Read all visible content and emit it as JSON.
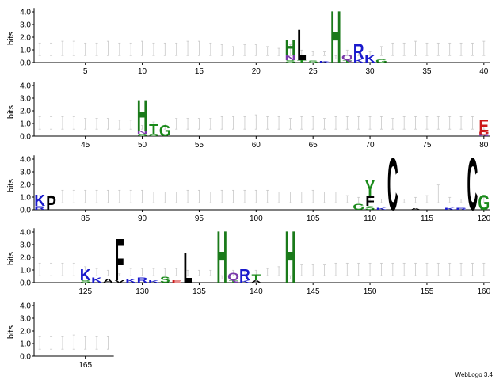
{
  "chart_data": {
    "type": "sequence-logo",
    "ylabel": "bits",
    "ylim": [
      0,
      4.3
    ],
    "yticks": [
      "0.0",
      "1.0",
      "2.0",
      "3.0",
      "4.0"
    ],
    "positions_per_row": 40,
    "total_positions": 167,
    "xtick_labels": [
      "5",
      "10",
      "15",
      "20",
      "25",
      "30",
      "35",
      "40",
      "45",
      "50",
      "55",
      "60",
      "65",
      "70",
      "75",
      "80",
      "85",
      "90",
      "95",
      "100",
      "105",
      "110",
      "115",
      "120",
      "125",
      "130",
      "135",
      "140",
      "145",
      "150",
      "155",
      "160",
      "165"
    ],
    "xtick_values": [
      5,
      10,
      15,
      20,
      25,
      30,
      35,
      40,
      45,
      50,
      55,
      60,
      65,
      70,
      75,
      80,
      85,
      90,
      95,
      100,
      105,
      110,
      115,
      120,
      125,
      130,
      135,
      140,
      145,
      150,
      155,
      160,
      165
    ],
    "residue_colors": {
      "H": "#1a7a1a",
      "C": "#000000",
      "G": "#1a8a1a",
      "Y": "#1a8a1a",
      "T": "#1a8a1a",
      "S": "#1a8a1a",
      "N": "#7a3aaa",
      "Q": "#7a3aaa",
      "K": "#1a1acc",
      "R": "#1a1acc",
      "E": "#cc1a1a",
      "D": "#cc1a1a",
      "L": "#000000",
      "F": "#000000",
      "P": "#000000",
      "A": "#000000",
      "V": "#000000"
    },
    "stacks": [
      {
        "pos": 23,
        "letters": [
          [
            "H",
            1.3
          ],
          [
            "N",
            0.35
          ],
          [
            "S",
            0.2
          ]
        ]
      },
      {
        "pos": 24,
        "letters": [
          [
            "L",
            2.5
          ],
          [
            "T",
            0.2
          ]
        ]
      },
      {
        "pos": 25,
        "letters": [
          [
            "S",
            0.15
          ]
        ]
      },
      {
        "pos": 26,
        "letters": [
          [
            "K",
            0.12
          ]
        ]
      },
      {
        "pos": 27,
        "letters": [
          [
            "H",
            4.2
          ]
        ]
      },
      {
        "pos": 28,
        "letters": [
          [
            "Q",
            0.45
          ],
          [
            "T",
            0.2
          ]
        ]
      },
      {
        "pos": 29,
        "letters": [
          [
            "R",
            1.2
          ],
          [
            "K",
            0.3
          ]
        ]
      },
      {
        "pos": 30,
        "letters": [
          [
            "K",
            0.6
          ]
        ]
      },
      {
        "pos": 31,
        "letters": [
          [
            "G",
            0.25
          ]
        ]
      },
      {
        "pos": 50,
        "letters": [
          [
            "H",
            2.5
          ],
          [
            "N",
            0.25
          ],
          [
            "S",
            0.2
          ]
        ]
      },
      {
        "pos": 51,
        "letters": [
          [
            "T",
            0.8
          ],
          [
            "S",
            0.2
          ]
        ]
      },
      {
        "pos": 52,
        "letters": [
          [
            "G",
            0.9
          ]
        ]
      },
      {
        "pos": 80,
        "letters": [
          [
            "E",
            1.0
          ],
          [
            "D",
            0.2
          ],
          [
            "N",
            0.15
          ]
        ]
      },
      {
        "pos": 81,
        "letters": [
          [
            "K",
            0.9
          ],
          [
            "R",
            0.3
          ]
        ]
      },
      {
        "pos": 82,
        "letters": [
          [
            "P",
            1.1
          ]
        ]
      },
      {
        "pos": 109,
        "letters": [
          [
            "G",
            0.5
          ]
        ]
      },
      {
        "pos": 110,
        "letters": [
          [
            "Y",
            1.3
          ],
          [
            "F",
            0.8
          ],
          [
            "S",
            0.3
          ]
        ]
      },
      {
        "pos": 111,
        "letters": [
          [
            "K",
            0.15
          ]
        ]
      },
      {
        "pos": 112,
        "letters": [
          [
            "C",
            4.2
          ]
        ]
      },
      {
        "pos": 114,
        "letters": [
          [
            "A",
            0.1
          ]
        ]
      },
      {
        "pos": 117,
        "letters": [
          [
            "K",
            0.15
          ]
        ]
      },
      {
        "pos": 118,
        "letters": [
          [
            "R",
            0.15
          ]
        ]
      },
      {
        "pos": 119,
        "letters": [
          [
            "C",
            4.2
          ]
        ]
      },
      {
        "pos": 120,
        "letters": [
          [
            "G",
            1.2
          ]
        ]
      },
      {
        "pos": 125,
        "letters": [
          [
            "K",
            0.9
          ],
          [
            "S",
            0.2
          ]
        ]
      },
      {
        "pos": 126,
        "letters": [
          [
            "K",
            0.4
          ]
        ]
      },
      {
        "pos": 127,
        "letters": [
          [
            "A",
            0.3
          ]
        ]
      },
      {
        "pos": 128,
        "letters": [
          [
            "F",
            3.4
          ],
          [
            "V",
            0.2
          ]
        ]
      },
      {
        "pos": 129,
        "letters": [
          [
            "K",
            0.3
          ]
        ]
      },
      {
        "pos": 130,
        "letters": [
          [
            "R",
            0.4
          ]
        ]
      },
      {
        "pos": 131,
        "letters": [
          [
            "K",
            0.2
          ]
        ]
      },
      {
        "pos": 132,
        "letters": [
          [
            "S",
            0.5
          ]
        ]
      },
      {
        "pos": 133,
        "letters": [
          [
            "E",
            0.2
          ]
        ]
      },
      {
        "pos": 134,
        "letters": [
          [
            "L",
            2.4
          ]
        ]
      },
      {
        "pos": 137,
        "letters": [
          [
            "H",
            4.2
          ]
        ]
      },
      {
        "pos": 138,
        "letters": [
          [
            "Q",
            0.6
          ],
          [
            "T",
            0.2
          ]
        ]
      },
      {
        "pos": 139,
        "letters": [
          [
            "R",
            0.9
          ],
          [
            "K",
            0.2
          ]
        ]
      },
      {
        "pos": 140,
        "letters": [
          [
            "T",
            0.5
          ],
          [
            "A",
            0.2
          ]
        ]
      },
      {
        "pos": 143,
        "letters": [
          [
            "H",
            4.2
          ]
        ]
      }
    ],
    "errorbar_heights": [
      0.55,
      0.55,
      0.6,
      0.6,
      0.55,
      0.55,
      0.6,
      0.55,
      0.55,
      0.6,
      0.55,
      0.55,
      0.55,
      0.6,
      0.6,
      0.55,
      0.5,
      0.45,
      0.5,
      0.5,
      0.45,
      0.4,
      0.5,
      0.35,
      0.3,
      0.3,
      0.1,
      0.35,
      0.3,
      0.3,
      0.45,
      0.55,
      0.55,
      0.6,
      0.55,
      0.55,
      0.55,
      0.55,
      0.55,
      0.6,
      0.55,
      0.55,
      0.55,
      0.55,
      0.5,
      0.5,
      0.5,
      0.45,
      0.45,
      0.3,
      0.4,
      0.35,
      0.5,
      0.5,
      0.5,
      0.5,
      0.55,
      0.55,
      0.55,
      0.6,
      0.55,
      0.55,
      0.5,
      0.55,
      0.55,
      0.5,
      0.55,
      0.55,
      0.55,
      0.55,
      0.55,
      0.5,
      0.55,
      0.55,
      0.55,
      0.55,
      0.55,
      0.55,
      0.55,
      0.3,
      0.4,
      0.4,
      0.55,
      0.55,
      0.55,
      0.55,
      0.55,
      0.55,
      0.55,
      0.55,
      0.5,
      0.5,
      0.5,
      0.55,
      0.55,
      0.5,
      0.55,
      0.55,
      0.55,
      0.55,
      0.55,
      0.5,
      0.5,
      0.5,
      0.55,
      0.5,
      0.5,
      0.4,
      0.35,
      0.4,
      0.3,
      0.1,
      0.3,
      0.35,
      0.4,
      0.7,
      0.35,
      0.3,
      0.1,
      0.35,
      0.55,
      0.55,
      0.55,
      0.55,
      0.45,
      0.4,
      0.35,
      0.25,
      0.4,
      0.4,
      0.4,
      0.4,
      0.4,
      0.35,
      0.35,
      0.35,
      0.1,
      0.35,
      0.35,
      0.35,
      0.4,
      0.45,
      0.1,
      0.5,
      0.5,
      0.5,
      0.55,
      0.55,
      0.55,
      0.55,
      0.55,
      0.55,
      0.55,
      0.55,
      0.55,
      0.55,
      0.55,
      0.55,
      0.55,
      0.55,
      0.55,
      0.55,
      0.55,
      0.6,
      0.55,
      0.55,
      0.55
    ]
  },
  "footer": {
    "credit": "WebLogo 3.4"
  }
}
